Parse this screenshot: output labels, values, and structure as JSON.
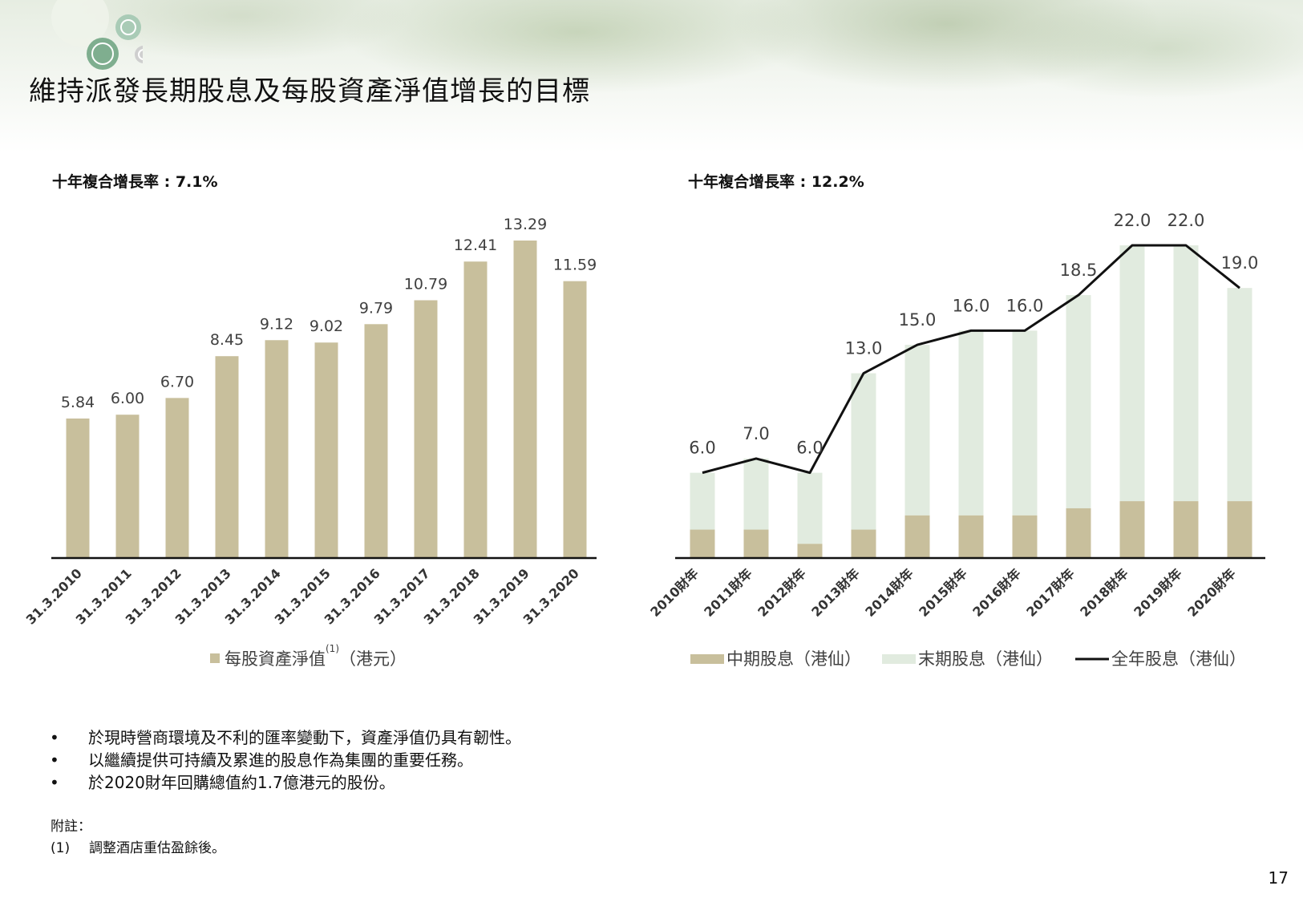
{
  "title": "維持派發長期股息及每股資產淨值增長的目標",
  "colors": {
    "bar_tan": "#c8bf9c",
    "bar_light": "#e1ebdf",
    "line": "#111111",
    "axis": "#111111",
    "label": "#404040"
  },
  "chart_data": [
    {
      "type": "bar",
      "cagr": "十年複合增長率 : 7.1%",
      "categories": [
        "31.3.2010",
        "31.3.2011",
        "31.3.2012",
        "31.3.2013",
        "31.3.2014",
        "31.3.2015",
        "31.3.2016",
        "31.3.2017",
        "31.3.2018",
        "31.3.2019",
        "31.3.2020"
      ],
      "series": [
        {
          "name": "每股資產淨值",
          "values": [
            5.84,
            6.0,
            6.7,
            8.45,
            9.12,
            9.02,
            9.79,
            10.79,
            12.41,
            13.29,
            11.59
          ]
        }
      ],
      "value_labels": [
        "5.84",
        "6.00",
        "6.70",
        "8.45",
        "9.12",
        "9.02",
        "9.79",
        "10.79",
        "12.41",
        "13.29",
        "11.59"
      ],
      "legend": {
        "label": "每股資產淨值",
        "superscript": "(1)",
        "suffix": "（港元）"
      },
      "ylim": [
        0,
        13.29
      ]
    },
    {
      "type": "bar",
      "stacked": true,
      "cagr": "十年複合增長率 : 12.2%",
      "categories": [
        "2010財年",
        "2011財年",
        "2012財年",
        "2013財年",
        "2014財年",
        "2015財年",
        "2016財年",
        "2017財年",
        "2018財年",
        "2019財年",
        "2020財年"
      ],
      "series": [
        {
          "name": "中期股息（港仙）",
          "type": "bar",
          "values": [
            2.0,
            2.0,
            1.0,
            2.0,
            3.0,
            3.0,
            3.0,
            3.5,
            4.0,
            4.0,
            4.0
          ]
        },
        {
          "name": "末期股息（港仙）",
          "type": "bar",
          "values": [
            4.0,
            5.0,
            5.0,
            11.0,
            12.0,
            13.0,
            13.0,
            15.0,
            18.0,
            18.0,
            15.0
          ]
        },
        {
          "name": "全年股息（港仙）",
          "type": "line",
          "values": [
            6.0,
            7.0,
            6.0,
            13.0,
            15.0,
            16.0,
            16.0,
            18.5,
            22.0,
            22.0,
            19.0
          ]
        }
      ],
      "value_labels": [
        "6.0",
        "7.0",
        "6.0",
        "13.0",
        "15.0",
        "16.0",
        "16.0",
        "18.5",
        "22.0",
        "22.0",
        "19.0"
      ],
      "ylim": [
        0,
        22.0
      ]
    }
  ],
  "bullets": [
    "於現時營商環境及不利的匯率變動下，資產淨值仍具有韌性。",
    "以繼續提供可持續及累進的股息作為集團的重要任務。",
    "於2020財年回購總值約1.7億港元的股份。"
  ],
  "bullet_symbol": "•",
  "notes": {
    "heading": "附註：",
    "items": [
      {
        "num": "(1)",
        "text": "調整酒店重估盈餘後。"
      }
    ]
  },
  "page_number": "17"
}
